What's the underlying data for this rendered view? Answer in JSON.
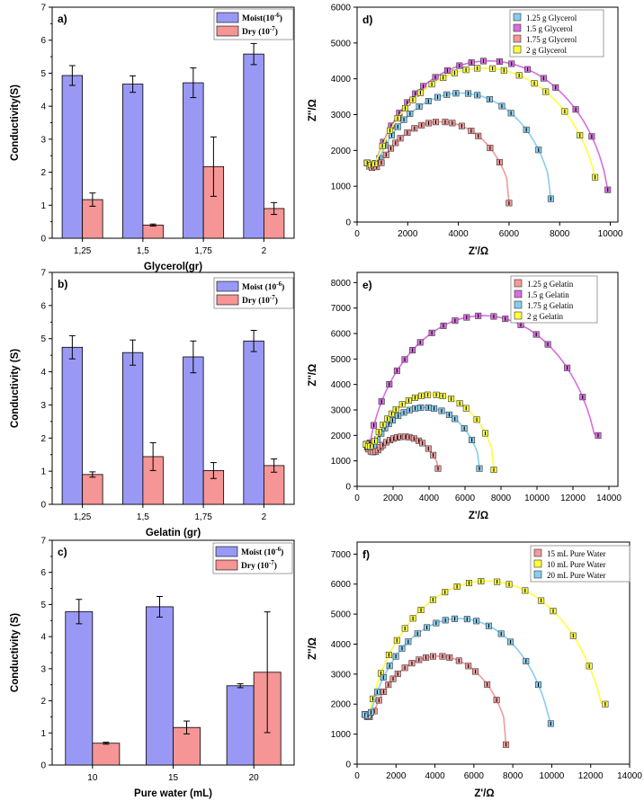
{
  "chart_data": [
    {
      "id": "a",
      "type": "bar",
      "panel_label": "a)",
      "categories": [
        "1,25",
        "1,5",
        "1,75",
        "2"
      ],
      "xlabel": "Glycerol(gr)",
      "ylabel": "Conductivity(S)",
      "ylim": [
        0,
        7
      ],
      "yticks": [
        "0",
        "1",
        "2",
        "3",
        "4",
        "5",
        "6",
        "7"
      ],
      "series": [
        {
          "name": "Moist(10",
          "exp": "-6",
          "close": ")",
          "color": "#9999f5",
          "values": [
            4.93,
            4.67,
            4.71,
            5.58
          ],
          "errors": [
            0.3,
            0.25,
            0.45,
            0.32
          ]
        },
        {
          "name": "Dry (10",
          "exp": "-7",
          "close": ")",
          "color": "#f59595",
          "values": [
            1.17,
            0.4,
            2.17,
            0.9
          ],
          "errors": [
            0.2,
            0.03,
            0.9,
            0.18
          ]
        }
      ]
    },
    {
      "id": "b",
      "type": "bar",
      "panel_label": "b)",
      "categories": [
        "1,25",
        "1,5",
        "1,75",
        "2"
      ],
      "xlabel": "Gelatin (gr)",
      "ylabel": "Conductivity (S)",
      "ylim": [
        0,
        7
      ],
      "yticks": [
        "0",
        "1",
        "2",
        "3",
        "4",
        "5",
        "6",
        "7"
      ],
      "series": [
        {
          "name": "Moist (10",
          "exp": "-6",
          "close": ")",
          "color": "#9999f5",
          "values": [
            4.74,
            4.58,
            4.45,
            4.93
          ],
          "errors": [
            0.35,
            0.38,
            0.48,
            0.32
          ]
        },
        {
          "name": "Dry (10",
          "exp": "-7",
          "close": ")",
          "color": "#f59595",
          "values": [
            0.9,
            1.44,
            1.02,
            1.17
          ],
          "errors": [
            0.08,
            0.42,
            0.24,
            0.2
          ]
        }
      ]
    },
    {
      "id": "c",
      "type": "bar",
      "panel_label": "c)",
      "categories": [
        "10",
        "15",
        "20"
      ],
      "xlabel": "Pure water (mL)",
      "ylabel": "Conductivity (S)",
      "ylim": [
        0,
        7
      ],
      "yticks": [
        "0",
        "1",
        "2",
        "3",
        "4",
        "5",
        "6",
        "7"
      ],
      "series": [
        {
          "name": "Moist (10",
          "exp": "-6",
          "close": ")",
          "color": "#9999f5",
          "values": [
            4.78,
            4.93,
            2.47
          ],
          "errors": [
            0.38,
            0.32,
            0.06
          ]
        },
        {
          "name": "Dry (10",
          "exp": "-7",
          "close": ")",
          "color": "#f59595",
          "values": [
            0.68,
            1.17,
            2.89
          ],
          "errors": [
            0.03,
            0.2,
            1.88
          ]
        }
      ]
    },
    {
      "id": "d",
      "type": "scatter",
      "panel_label": "d)",
      "xlabel": "Z'/Ω",
      "ylabel": "Z''/Ω",
      "xlim": [
        0,
        10300
      ],
      "ylim": [
        0,
        6000
      ],
      "xticks": [
        0,
        2000,
        4000,
        6000,
        8000,
        10000
      ],
      "yticks": [
        0,
        1000,
        2000,
        3000,
        4000,
        5000,
        6000
      ],
      "series": [
        {
          "name": "1.25 g Glycerol",
          "color": "#87cdf0",
          "x0": 400,
          "x1": 7800,
          "ymax": 3600,
          "yend": 650,
          "xlast": 7650
        },
        {
          "name": "1.5 g Glycerol",
          "color": "#d86ee0",
          "x0": 400,
          "x1": 10000,
          "ymax": 4500,
          "yend": 900,
          "xlast": 9900
        },
        {
          "name": "1.75 g Glycerol",
          "color": "#f39a9a",
          "x0": 400,
          "x1": 6200,
          "ymax": 2800,
          "yend": 530,
          "xlast": 6000
        },
        {
          "name": "2 g Glycerol",
          "color": "#ffff3c",
          "x0": 400,
          "x1": 9600,
          "ymax": 4300,
          "yend": 1250,
          "xlast": 9400
        }
      ]
    },
    {
      "id": "e",
      "type": "scatter",
      "panel_label": "e)",
      "xlabel": "Z'/Ω",
      "ylabel": "Z''/Ω",
      "xlim": [
        0,
        14500
      ],
      "ylim": [
        0,
        8400
      ],
      "xticks": [
        0,
        2000,
        4000,
        6000,
        8000,
        10000,
        12000,
        14000
      ],
      "yticks": [
        0,
        1000,
        2000,
        3000,
        4000,
        5000,
        6000,
        7000,
        8000
      ],
      "series": [
        {
          "name": "1.25 g Gelatin",
          "color": "#f39a9a",
          "x0": 500,
          "x1": 4700,
          "ymax": 1950,
          "yend": 700,
          "xlast": 4500
        },
        {
          "name": "1.5 g Gelatin",
          "color": "#d86ee0",
          "x0": 500,
          "x1": 13500,
          "ymax": 6700,
          "yend": 2000,
          "xlast": 13400
        },
        {
          "name": "1.75 g Gelatin",
          "color": "#87cdf0",
          "x0": 500,
          "x1": 7000,
          "ymax": 3100,
          "yend": 700,
          "xlast": 6800
        },
        {
          "name": "2 g Gelatin",
          "color": "#ffff3c",
          "x0": 500,
          "x1": 7800,
          "ymax": 3600,
          "yend": 650,
          "xlast": 7600
        }
      ]
    },
    {
      "id": "f",
      "type": "scatter",
      "panel_label": "f)",
      "xlabel": "Z'/Ω",
      "ylabel": "Z''/Ω",
      "xlim": [
        0,
        14000
      ],
      "ylim": [
        0,
        7400
      ],
      "xticks": [
        0,
        2000,
        4000,
        6000,
        8000,
        10000,
        12000,
        14000
      ],
      "yticks": [
        0,
        1000,
        2000,
        3000,
        4000,
        5000,
        6000,
        7000
      ],
      "series": [
        {
          "name": "15 mL Pure Water",
          "color": "#f39a9a",
          "x0": 400,
          "x1": 7900,
          "ymax": 3600,
          "yend": 650,
          "xlast": 7650
        },
        {
          "name": "10 mL Pure Water",
          "color": "#ffff3c",
          "x0": 400,
          "x1": 12900,
          "ymax": 6100,
          "yend": 2000,
          "xlast": 12750
        },
        {
          "name": "20 mL Pure Water",
          "color": "#87cdf0",
          "x0": 400,
          "x1": 10100,
          "ymax": 4850,
          "yend": 1350,
          "xlast": 9950
        }
      ]
    }
  ]
}
